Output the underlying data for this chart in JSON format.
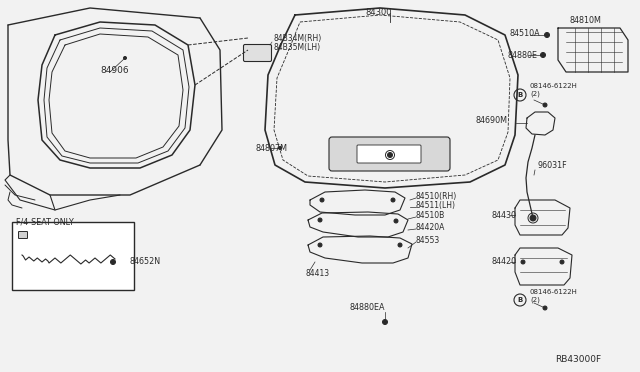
{
  "bg_color": "#f2f2f2",
  "line_color": "#2a2a2a",
  "ref_code": "RB43000F",
  "labels": {
    "trunk_opening": "84906",
    "seal_rh": "84B34M(RH)",
    "seal_lh": "84B35M(LH)",
    "trunk_lid": "84300",
    "key_cylinder": "84807M",
    "handle_rh": "84510(RH)",
    "handle_lh": "84511(LH)",
    "handle_base": "84510B",
    "striker_bracket": "84420A",
    "striker": "84553",
    "latch_bracket": "84413",
    "bumper_ea": "84880EA",
    "license_lamp": "84810M",
    "lamp_socket": "84510A",
    "bumper_e": "84880E",
    "bolt1": "08146-6122H\n(2)",
    "actuator_wire": "84690M",
    "relay": "96031F",
    "latch": "84430",
    "lock": "84420",
    "bolt2": "08146-6122H\n(2)",
    "cable": "84652N",
    "seat_note": "F/4-SEAT ONLY"
  }
}
